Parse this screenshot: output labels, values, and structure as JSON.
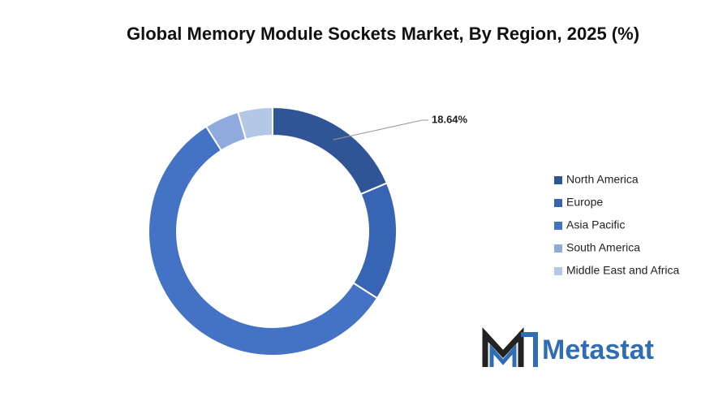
{
  "chart_data": {
    "type": "donut",
    "title": "Global Memory Module Sockets Market, By Region, 2025 (%)",
    "categories": [
      "North America",
      "Europe",
      "Asia Pacific",
      "South America",
      "Middle East and Africa"
    ],
    "values": [
      18.64,
      15.4,
      56.96,
      4.5,
      4.5
    ],
    "value_labels": [
      "18.64%",
      null,
      null,
      null,
      null
    ],
    "colors": [
      "#2f5597",
      "#3864b4",
      "#4472c4",
      "#8faadc",
      "#b4c7e7"
    ],
    "legend": "right"
  },
  "logo": "Metastat"
}
